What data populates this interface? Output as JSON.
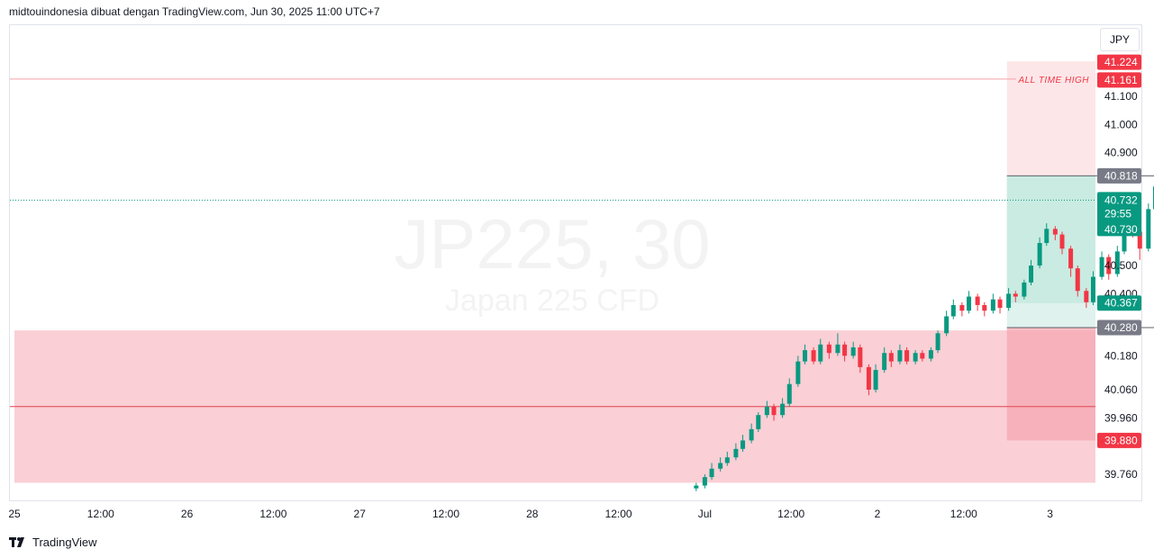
{
  "header": {
    "text": "midtouindonesia dibuat dengan TradingView.com, Jun 30, 2025 11:00 UTC+7"
  },
  "currency": "JPY",
  "watermark": {
    "symbol": "JP225, 30",
    "name": "Japan 225 CFD"
  },
  "footer": {
    "brand": "TradingView",
    "logo": "TV-logo-icon"
  },
  "colors": {
    "up": "#089981",
    "down": "#f23645",
    "zone_red": "#f8bbc3",
    "zone_green": "#c9ebe2",
    "zone_pale_red": "#fde2e4"
  },
  "chart_data": {
    "type": "candlestick",
    "ylim": [
      39.7,
      41.3
    ],
    "y_ticks": [
      "41.100",
      "41.000",
      "40.900",
      "40.500",
      "40.400",
      "40.180",
      "40.060",
      "39.960",
      "39.760"
    ],
    "x_ticks": [
      "25",
      "12:00",
      "26",
      "12:00",
      "27",
      "12:00",
      "28",
      "12:00",
      "Jul",
      "12:00",
      "2",
      "12:00",
      "3"
    ],
    "price_labels": [
      {
        "value": 41.224,
        "text": "41.224",
        "color": "#f23645"
      },
      {
        "value": 41.161,
        "text": "41.161",
        "color": "#f23645"
      },
      {
        "value": 40.818,
        "text": "40.818",
        "color": "#787b86"
      },
      {
        "value": 40.732,
        "text": "40.732",
        "color": "#089981"
      },
      {
        "value": 40.73,
        "text": "40.730",
        "color": "#089981"
      },
      {
        "value": 40.367,
        "text": "40.367",
        "color": "#089981"
      },
      {
        "value": 40.28,
        "text": "40.280",
        "color": "#787b86"
      },
      {
        "value": 39.88,
        "text": "39.880",
        "color": "#f23645"
      }
    ],
    "countdown": "29:55",
    "annotation": {
      "text": "ALL TIME HIGH",
      "value": 41.161
    },
    "horizontal_lines": [
      {
        "value": 41.161,
        "color": "#f7a1a9",
        "style": "solid"
      },
      {
        "value": 40.732,
        "color": "#089981",
        "style": "dotted"
      },
      {
        "value": 40.0,
        "color": "#e0474f",
        "style": "solid"
      }
    ],
    "zones": [
      {
        "name": "demand-zone",
        "x_start": 0,
        "x_end": 12.7,
        "y_low": 39.73,
        "y_high": 40.27,
        "color": "#f8bbc3",
        "opacity": 0.7
      },
      {
        "name": "target-zone",
        "x_start": 5.75,
        "x_end": 9.05,
        "y_low": 40.818,
        "y_high": 41.224,
        "color": "#fde2e4",
        "opacity": 0.85
      },
      {
        "name": "profit-zone",
        "x_start": 5.75,
        "x_end": 9.05,
        "y_low": 40.28,
        "y_high": 40.818,
        "color": "#d7efe8",
        "opacity": 0.8
      },
      {
        "name": "profit-zone-inner",
        "x_start": 5.75,
        "x_end": 9.05,
        "y_low": 40.367,
        "y_high": 40.818,
        "color": "#c3e8dd",
        "opacity": 0.8
      },
      {
        "name": "stop-zone",
        "x_start": 5.75,
        "x_end": 9.05,
        "y_low": 39.88,
        "y_high": 40.28,
        "color": "#f5a7b0",
        "opacity": 0.75
      }
    ],
    "position_lines": [
      {
        "value": 40.818,
        "x_start": 5.75,
        "x_end": 9.05
      },
      {
        "value": 40.28,
        "x_start": 5.75,
        "x_end": 9.05
      }
    ],
    "candles": [
      [
        3.95,
        39.71,
        39.72,
        39.7,
        39.73
      ],
      [
        4.0,
        39.72,
        39.75,
        39.71,
        39.76
      ],
      [
        4.04,
        39.75,
        39.78,
        39.74,
        39.8
      ],
      [
        4.09,
        39.78,
        39.8,
        39.77,
        39.82
      ],
      [
        4.13,
        39.8,
        39.82,
        39.79,
        39.84
      ],
      [
        4.18,
        39.82,
        39.85,
        39.81,
        39.87
      ],
      [
        4.22,
        39.85,
        39.88,
        39.84,
        39.9
      ],
      [
        4.27,
        39.88,
        39.92,
        39.87,
        39.94
      ],
      [
        4.31,
        39.92,
        39.97,
        39.91,
        39.98
      ],
      [
        4.36,
        39.97,
        40.0,
        39.96,
        40.02
      ],
      [
        4.4,
        40.0,
        39.97,
        39.95,
        40.01
      ],
      [
        4.45,
        39.97,
        40.01,
        39.96,
        40.03
      ],
      [
        4.49,
        40.01,
        40.08,
        40.0,
        40.1
      ],
      [
        4.54,
        40.08,
        40.16,
        40.07,
        40.18
      ],
      [
        4.58,
        40.16,
        40.2,
        40.15,
        40.22
      ],
      [
        4.63,
        40.2,
        40.16,
        40.15,
        40.21
      ],
      [
        4.67,
        40.16,
        40.22,
        40.15,
        40.24
      ],
      [
        4.72,
        40.22,
        40.19,
        40.17,
        40.23
      ],
      [
        4.77,
        40.19,
        40.22,
        40.18,
        40.26
      ],
      [
        4.81,
        40.22,
        40.18,
        40.16,
        40.23
      ],
      [
        4.86,
        40.18,
        40.21,
        40.17,
        40.23
      ],
      [
        4.9,
        40.21,
        40.14,
        40.12,
        40.22
      ],
      [
        4.95,
        40.14,
        40.06,
        40.04,
        40.15
      ],
      [
        4.99,
        40.06,
        40.13,
        40.05,
        40.15
      ],
      [
        5.04,
        40.13,
        40.19,
        40.12,
        40.21
      ],
      [
        5.08,
        40.19,
        40.16,
        40.14,
        40.2
      ],
      [
        5.13,
        40.16,
        40.2,
        40.15,
        40.22
      ],
      [
        5.17,
        40.2,
        40.16,
        40.15,
        40.21
      ],
      [
        5.22,
        40.16,
        40.19,
        40.15,
        40.2
      ],
      [
        5.26,
        40.19,
        40.17,
        40.16,
        40.2
      ],
      [
        5.31,
        40.17,
        40.2,
        40.16,
        40.21
      ],
      [
        5.35,
        40.2,
        40.26,
        40.19,
        40.27
      ],
      [
        5.4,
        40.26,
        40.32,
        40.25,
        40.34
      ],
      [
        5.44,
        40.32,
        40.36,
        40.31,
        40.38
      ],
      [
        5.49,
        40.36,
        40.34,
        40.32,
        40.37
      ],
      [
        5.53,
        40.34,
        40.39,
        40.33,
        40.41
      ],
      [
        5.58,
        40.39,
        40.36,
        40.34,
        40.4
      ],
      [
        5.62,
        40.36,
        40.34,
        40.32,
        40.37
      ],
      [
        5.67,
        40.34,
        40.38,
        40.33,
        40.4
      ],
      [
        5.71,
        40.38,
        40.35,
        40.33,
        40.39
      ],
      [
        5.76,
        40.35,
        40.4,
        40.34,
        40.42
      ],
      [
        5.8,
        40.4,
        40.39,
        40.37,
        40.41
      ],
      [
        5.85,
        40.39,
        40.44,
        40.38,
        40.45
      ],
      [
        5.89,
        40.44,
        40.5,
        40.43,
        40.52
      ],
      [
        5.94,
        40.5,
        40.58,
        40.49,
        40.6
      ],
      [
        5.98,
        40.58,
        40.63,
        40.57,
        40.65
      ],
      [
        6.03,
        40.63,
        40.61,
        40.59,
        40.64
      ],
      [
        6.07,
        40.61,
        40.56,
        40.54,
        40.62
      ],
      [
        6.12,
        40.56,
        40.49,
        40.46,
        40.57
      ],
      [
        6.16,
        40.49,
        40.41,
        40.39,
        40.5
      ],
      [
        6.21,
        40.41,
        40.37,
        40.35,
        40.42
      ],
      [
        6.25,
        40.37,
        40.46,
        40.36,
        40.48
      ],
      [
        6.3,
        40.46,
        40.53,
        40.45,
        40.55
      ],
      [
        6.34,
        40.53,
        40.47,
        40.45,
        40.54
      ],
      [
        6.39,
        40.47,
        40.55,
        40.46,
        40.57
      ],
      [
        6.43,
        40.55,
        40.65,
        40.54,
        40.67
      ],
      [
        6.48,
        40.65,
        40.62,
        40.6,
        40.66
      ],
      [
        6.52,
        40.62,
        40.56,
        40.52,
        40.63
      ],
      [
        6.57,
        40.56,
        40.7,
        40.55,
        40.72
      ],
      [
        6.61,
        40.7,
        40.78,
        40.69,
        40.8
      ],
      [
        6.66,
        40.78,
        40.83,
        40.76,
        40.86
      ],
      [
        6.7,
        40.83,
        40.79,
        40.77,
        40.85
      ],
      [
        6.75,
        40.79,
        40.82,
        40.77,
        40.85
      ],
      [
        6.79,
        40.82,
        40.77,
        40.75,
        40.83
      ],
      [
        6.84,
        40.77,
        40.79,
        40.75,
        40.8
      ],
      [
        6.88,
        40.79,
        40.75,
        40.73,
        40.8
      ],
      [
        6.93,
        40.75,
        40.73,
        40.72,
        40.76
      ]
    ]
  }
}
